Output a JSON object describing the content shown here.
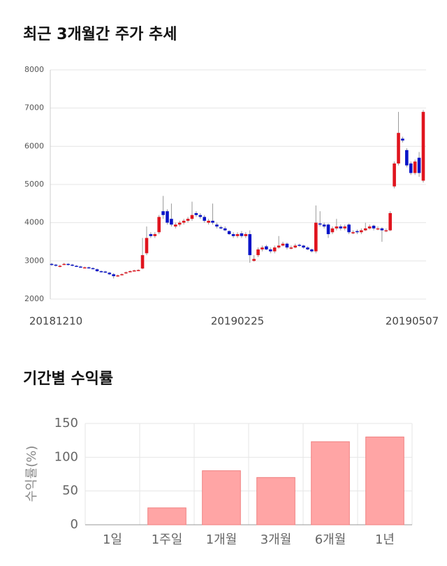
{
  "chart_data": [
    {
      "type": "candlestick",
      "title": "최근 3개월간 주가 추세",
      "categories": [
        "20181210",
        null,
        null,
        null,
        null,
        null,
        null,
        null,
        null,
        null,
        null,
        null,
        null,
        null,
        null,
        null,
        null,
        null,
        null,
        null,
        null,
        null,
        null,
        null,
        null,
        null,
        null,
        null,
        null,
        null,
        null,
        null,
        null,
        null,
        null,
        null,
        null,
        null,
        null,
        null,
        null,
        null,
        null,
        null,
        null,
        "20190225",
        null,
        null,
        null,
        null,
        null,
        null,
        null,
        null,
        null,
        null,
        null,
        null,
        null,
        null,
        null,
        null,
        null,
        null,
        null,
        null,
        null,
        null,
        null,
        null,
        null,
        null,
        null,
        null,
        null,
        null,
        null,
        null,
        null,
        null,
        null,
        null,
        null,
        null,
        null,
        null,
        null,
        null,
        null,
        null,
        "20190507"
      ],
      "open": [
        2920,
        2900,
        2850,
        2900,
        2920,
        2900,
        2870,
        2850,
        2820,
        2830,
        2810,
        2780,
        2730,
        2720,
        2690,
        2650,
        2600,
        2630,
        2680,
        2710,
        2740,
        2740,
        2800,
        3200,
        3700,
        3650,
        3750,
        4300,
        4300,
        4100,
        3900,
        3950,
        4000,
        4050,
        4100,
        4250,
        4200,
        4150,
        4000,
        4050,
        3950,
        3880,
        3850,
        3780,
        3700,
        3650,
        3720,
        3650,
        3700,
        3000,
        3150,
        3300,
        3380,
        3300,
        3250,
        3350,
        3400,
        3450,
        3320,
        3350,
        3420,
        3400,
        3350,
        3300,
        3250,
        3980,
        3950,
        3950,
        3750,
        3850,
        3900,
        3850,
        3950,
        3720,
        3780,
        3750,
        3800,
        3850,
        3920,
        3830,
        3850,
        3780,
        3800,
        4950,
        5550,
        6200,
        5900,
        5550,
        5300,
        5700,
        5100
      ],
      "high": [
        2950,
        2920,
        2900,
        2950,
        2940,
        2920,
        2890,
        2870,
        2850,
        2850,
        2830,
        2800,
        2750,
        2740,
        2710,
        2680,
        2640,
        2670,
        2720,
        2750,
        2770,
        2780,
        3600,
        3900,
        3750,
        3750,
        4200,
        4700,
        4350,
        4500,
        4000,
        4050,
        4100,
        4150,
        4550,
        4300,
        4250,
        4200,
        4100,
        4500,
        4000,
        3920,
        3900,
        3800,
        3750,
        3750,
        3780,
        3750,
        3800,
        3150,
        3350,
        3400,
        3420,
        3350,
        3400,
        3650,
        3500,
        3480,
        3400,
        3450,
        3450,
        3420,
        3380,
        3320,
        4450,
        4300,
        4000,
        3980,
        3900,
        4100,
        3950,
        3950,
        3980,
        3800,
        3820,
        3850,
        4000,
        3950,
        3950,
        3900,
        3880,
        3850,
        4300,
        5600,
        6900,
        6250,
        5950,
        5600,
        5650,
        5850,
        6950
      ],
      "low": [
        2870,
        2850,
        2830,
        2890,
        2880,
        2860,
        2840,
        2820,
        2800,
        2800,
        2780,
        2710,
        2700,
        2680,
        2630,
        2540,
        2580,
        2620,
        2660,
        2700,
        2720,
        2730,
        2780,
        3150,
        3600,
        3600,
        3700,
        4100,
        3950,
        3900,
        3850,
        3900,
        3950,
        4000,
        4050,
        4150,
        4100,
        4000,
        3950,
        3950,
        3850,
        3830,
        3780,
        3680,
        3600,
        3600,
        3600,
        3600,
        2950,
        2980,
        3100,
        3250,
        3280,
        3200,
        3200,
        3320,
        3380,
        3300,
        3300,
        3330,
        3370,
        3320,
        3280,
        3220,
        3200,
        3900,
        3850,
        3600,
        3700,
        3800,
        3800,
        3800,
        3700,
        3700,
        3700,
        3700,
        3780,
        3820,
        3800,
        3800,
        3500,
        3750,
        3780,
        4900,
        5500,
        6100,
        5450,
        5250,
        5250,
        5200,
        5050
      ],
      "close": [
        2900,
        2880,
        2870,
        2920,
        2900,
        2880,
        2860,
        2840,
        2830,
        2820,
        2800,
        2730,
        2720,
        2700,
        2650,
        2600,
        2620,
        2650,
        2700,
        2730,
        2750,
        2760,
        3150,
        3600,
        3650,
        3700,
        4150,
        4200,
        4000,
        3950,
        3950,
        4000,
        4050,
        4100,
        4200,
        4200,
        4150,
        4050,
        4050,
        4000,
        3900,
        3850,
        3800,
        3700,
        3650,
        3700,
        3650,
        3700,
        3150,
        3050,
        3300,
        3350,
        3300,
        3250,
        3350,
        3400,
        3450,
        3350,
        3350,
        3400,
        3400,
        3350,
        3300,
        3250,
        4000,
        3950,
        3900,
        3700,
        3850,
        3900,
        3850,
        3900,
        3750,
        3750,
        3750,
        3800,
        3850,
        3900,
        3850,
        3850,
        3800,
        3800,
        4250,
        5550,
        6350,
        6150,
        5500,
        5300,
        5600,
        5300,
        6900
      ],
      "up_color": "#e0141e",
      "down_color": "#0a14c8",
      "ylim": [
        2000,
        8000
      ],
      "yticks": [
        2000,
        3000,
        4000,
        5000,
        6000,
        7000,
        8000
      ],
      "grid": true
    },
    {
      "type": "bar",
      "title": "기간별 수익률",
      "y_label": "수익률(%)",
      "categories": [
        "1일",
        "1주일",
        "1개월",
        "3개월",
        "6개월",
        "1년"
      ],
      "values": [
        0,
        25,
        80,
        70,
        123,
        130
      ],
      "color": "#ffa5a5",
      "ylim": [
        0,
        150
      ],
      "yticks": [
        0,
        50,
        100,
        150
      ],
      "grid": true
    }
  ]
}
